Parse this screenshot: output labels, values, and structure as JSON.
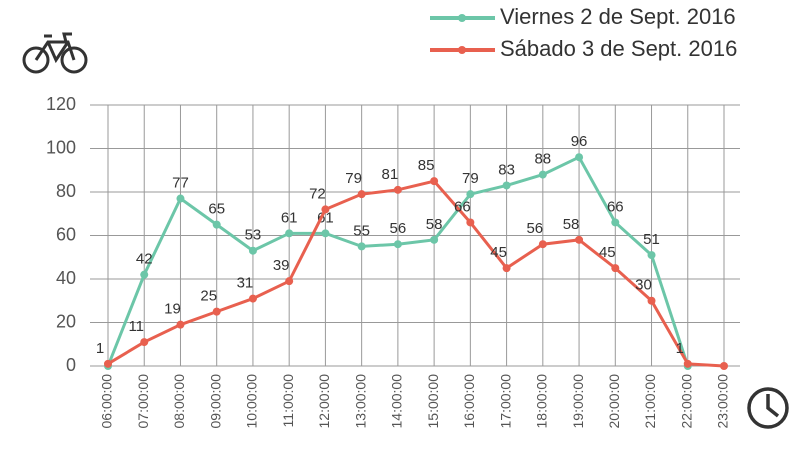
{
  "chart_data": {
    "type": "line",
    "categories": [
      "06:00:00",
      "07:00:00",
      "08:00:00",
      "09:00:00",
      "10:00:00",
      "11:00:00",
      "12:00:00",
      "13:00:00",
      "14:00:00",
      "15:00:00",
      "16:00:00",
      "17:00:00",
      "18:00:00",
      "19:00:00",
      "20:00:00",
      "21:00:00",
      "22:00:00",
      "23:00:00"
    ],
    "series": [
      {
        "name": "Viernes 2 de Sept. 2016",
        "color": "#6cc6a8",
        "values": [
          0,
          42,
          77,
          65,
          53,
          61,
          61,
          55,
          56,
          58,
          79,
          83,
          88,
          96,
          66,
          51,
          0,
          null
        ],
        "value_labels": [
          null,
          "42",
          "77",
          "65",
          "53",
          "61",
          "61",
          "55",
          "56",
          "58",
          "79",
          "83",
          "88",
          "96",
          "66",
          "51",
          null,
          null
        ]
      },
      {
        "name": "Sábado 3 de Sept. 2016",
        "color": "#e8604f",
        "values": [
          1,
          11,
          19,
          25,
          31,
          39,
          72,
          79,
          81,
          85,
          66,
          45,
          56,
          58,
          45,
          30,
          1,
          0
        ],
        "value_labels": [
          "1",
          "11",
          "19",
          "25",
          "31",
          "39",
          "72",
          "79",
          "81",
          "85",
          "66",
          "45",
          "56",
          "58",
          "45",
          "30",
          "1",
          null
        ]
      }
    ],
    "ylim": [
      0,
      120
    ],
    "yticks": [
      0,
      20,
      40,
      60,
      80,
      100,
      120
    ],
    "grid": true,
    "legend": "top-right"
  }
}
